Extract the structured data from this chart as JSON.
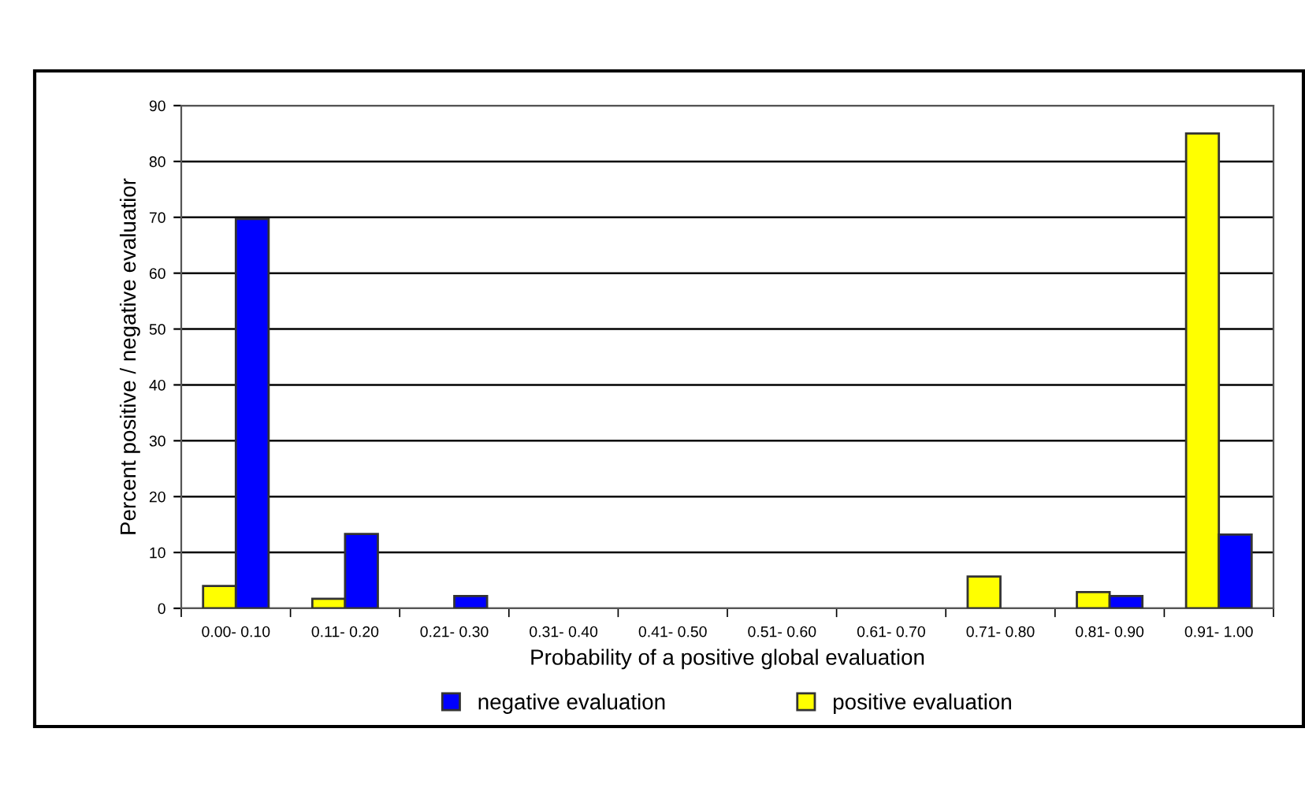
{
  "chart_data": {
    "type": "bar",
    "categories": [
      "0.00- 0.10",
      "0.11- 0.20",
      "0.21- 0.30",
      "0.31- 0.40",
      "0.41- 0.50",
      "0.51- 0.60",
      "0.61- 0.70",
      "0.71- 0.80",
      "0.81- 0.90",
      "0.91- 1.00"
    ],
    "series": [
      {
        "name": "positive evaluation",
        "color": "#ffff00",
        "values": [
          4,
          1.7,
          null,
          null,
          null,
          null,
          null,
          5.7,
          2.9,
          85
        ]
      },
      {
        "name": "negative evaluation",
        "color": "#0000ff",
        "values": [
          69.7,
          13.3,
          2.2,
          null,
          null,
          null,
          null,
          null,
          2.2,
          13.2
        ]
      }
    ],
    "xlabel": "Probability of a positive global evaluation",
    "ylabel": "Percent positive / negative evaluatior",
    "ylim": [
      0,
      90
    ],
    "yticks": [
      0,
      10,
      20,
      30,
      40,
      50,
      60,
      70,
      80,
      90
    ],
    "grid": "y",
    "legend": "bottom"
  }
}
